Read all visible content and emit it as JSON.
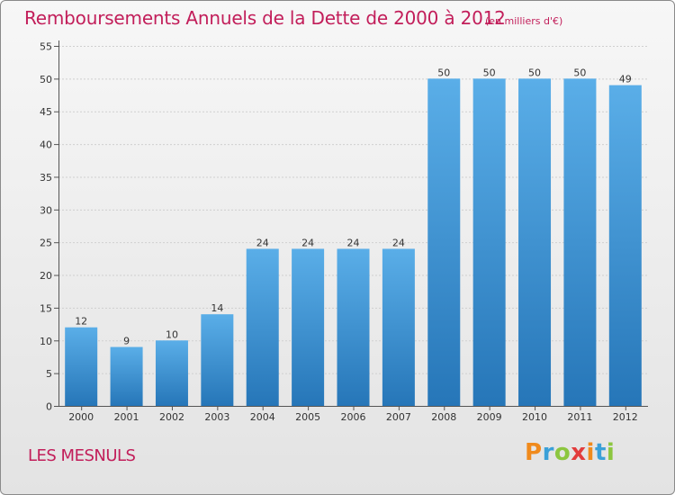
{
  "chart_data": {
    "type": "bar",
    "title": "Remboursements Annuels de la Dette de 2000 à 2012",
    "subtitle": "(en milliers d'€)",
    "categories": [
      "2000",
      "2001",
      "2002",
      "2003",
      "2004",
      "2005",
      "2006",
      "2007",
      "2008",
      "2009",
      "2010",
      "2011",
      "2012"
    ],
    "values": [
      12,
      9,
      10,
      14,
      24,
      24,
      24,
      24,
      50,
      50,
      50,
      50,
      49
    ],
    "xlabel": "",
    "ylabel": "",
    "ylim": [
      0,
      55
    ],
    "yticks": [
      0,
      5,
      10,
      15,
      20,
      25,
      30,
      35,
      40,
      45,
      50,
      55
    ],
    "grid": true
  },
  "commune": "LES MESNULS",
  "logo": {
    "letters": [
      "P",
      "r",
      "o",
      "x",
      "i",
      "t",
      "i"
    ]
  },
  "colors": {
    "bar_light": "#5aaee8",
    "bar_dark": "#2676b8",
    "title": "#c21e5a"
  }
}
